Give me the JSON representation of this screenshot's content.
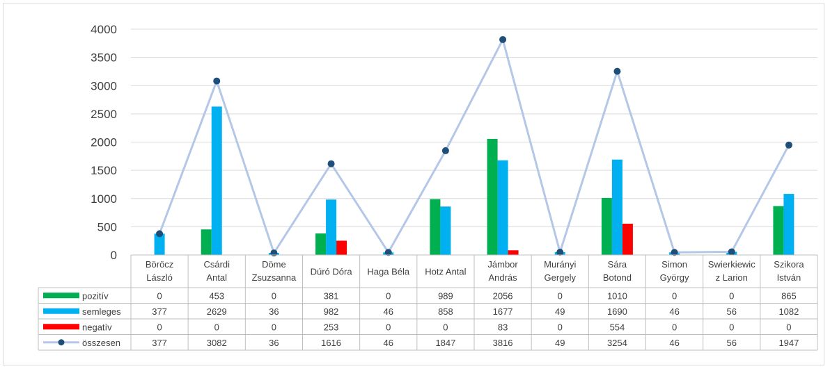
{
  "chart_data": {
    "type": "bar",
    "categories": [
      [
        "Böröcz",
        "László"
      ],
      [
        "Csárdi",
        "Antal"
      ],
      [
        "Döme",
        "Zsuzsanna"
      ],
      [
        "Dúró Dóra"
      ],
      [
        "Haga Béla"
      ],
      [
        "Hotz Antal"
      ],
      [
        "Jámbor",
        "András"
      ],
      [
        "Murányi",
        "Gergely"
      ],
      [
        "Sára",
        "Botond"
      ],
      [
        "Simon",
        "György"
      ],
      [
        "Swierkiewic",
        "z Larion"
      ],
      [
        "Szikora",
        "István"
      ]
    ],
    "series": [
      {
        "name": "pozitív",
        "kind": "bar",
        "color": "#00b050",
        "values": [
          0,
          453,
          0,
          381,
          0,
          989,
          2056,
          0,
          1010,
          0,
          0,
          865
        ]
      },
      {
        "name": "semleges",
        "kind": "bar",
        "color": "#00b0f0",
        "values": [
          377,
          2629,
          36,
          982,
          46,
          858,
          1677,
          49,
          1690,
          46,
          56,
          1082
        ]
      },
      {
        "name": "negatív",
        "kind": "bar",
        "color": "#ff0000",
        "values": [
          0,
          0,
          0,
          253,
          0,
          0,
          83,
          0,
          554,
          0,
          0,
          0
        ]
      },
      {
        "name": "összesen",
        "kind": "line",
        "color": "#b4c7e7",
        "marker_color": "#1f4e79",
        "values": [
          377,
          3082,
          36,
          1616,
          46,
          1847,
          3816,
          49,
          3254,
          46,
          56,
          1947
        ]
      }
    ],
    "yticks": [
      0,
      500,
      1000,
      1500,
      2000,
      2500,
      3000,
      3500,
      4000
    ],
    "ylim": [
      0,
      4000
    ],
    "grid": true,
    "legend": "data-table-left"
  }
}
